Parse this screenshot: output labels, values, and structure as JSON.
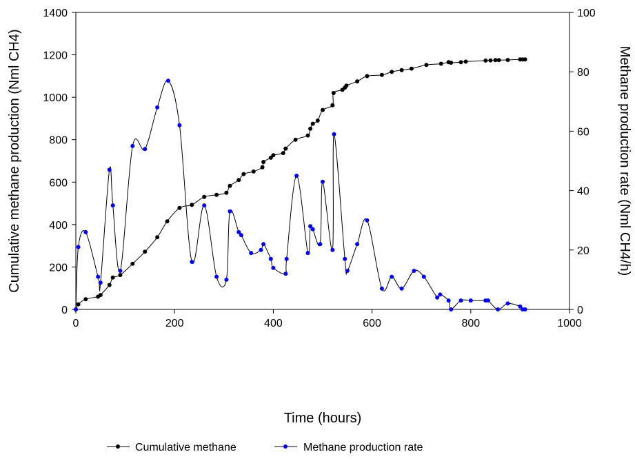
{
  "chart_data": {
    "type": "line",
    "xlabel": "Time (hours)",
    "ylabel": "Cumulative methane production (Nml CH4)",
    "y2label": "Methane production rate (Nml CH4/h)",
    "xlim": [
      0,
      1000
    ],
    "ylim": [
      0,
      1400
    ],
    "y2lim": [
      0,
      100
    ],
    "x_ticks": [
      "0",
      "200",
      "400",
      "600",
      "800",
      "1000"
    ],
    "y_ticks": [
      "0",
      "200",
      "400",
      "600",
      "800",
      "1000",
      "1200",
      "1400"
    ],
    "y2_ticks": [
      "0",
      "20",
      "40",
      "60",
      "80",
      "100"
    ],
    "grid": false,
    "legend_position": "bottom",
    "series": [
      {
        "name": "Cumulative methane",
        "axis": "left",
        "color": "#000000",
        "points": [
          [
            0,
            0
          ],
          [
            5,
            24
          ],
          [
            20,
            48
          ],
          [
            45,
            60
          ],
          [
            50,
            68
          ],
          [
            68,
            115
          ],
          [
            75,
            150
          ],
          [
            90,
            162
          ],
          [
            115,
            215
          ],
          [
            140,
            272
          ],
          [
            165,
            340
          ],
          [
            185,
            415
          ],
          [
            210,
            478
          ],
          [
            235,
            493
          ],
          [
            260,
            530
          ],
          [
            285,
            540
          ],
          [
            305,
            550
          ],
          [
            312,
            582
          ],
          [
            330,
            610
          ],
          [
            340,
            638
          ],
          [
            360,
            650
          ],
          [
            378,
            670
          ],
          [
            380,
            695
          ],
          [
            395,
            715
          ],
          [
            400,
            727
          ],
          [
            420,
            737
          ],
          [
            425,
            758
          ],
          [
            445,
            800
          ],
          [
            470,
            820
          ],
          [
            475,
            852
          ],
          [
            480,
            875
          ],
          [
            490,
            890
          ],
          [
            500,
            940
          ],
          [
            520,
            962
          ],
          [
            522,
            1020
          ],
          [
            540,
            1035
          ],
          [
            545,
            1045
          ],
          [
            548,
            1055
          ],
          [
            570,
            1075
          ],
          [
            590,
            1100
          ],
          [
            620,
            1105
          ],
          [
            640,
            1120
          ],
          [
            660,
            1128
          ],
          [
            680,
            1135
          ],
          [
            710,
            1152
          ],
          [
            740,
            1158
          ],
          [
            755,
            1165
          ],
          [
            760,
            1163
          ],
          [
            780,
            1165
          ],
          [
            790,
            1168
          ],
          [
            830,
            1173
          ],
          [
            840,
            1174
          ],
          [
            850,
            1175
          ],
          [
            857,
            1175
          ],
          [
            875,
            1176
          ],
          [
            900,
            1178
          ],
          [
            905,
            1178
          ],
          [
            910,
            1178
          ]
        ]
      },
      {
        "name": "Methane production rate",
        "axis": "right",
        "color": "#0000ff",
        "points": [
          [
            0,
            0
          ],
          [
            5,
            21
          ],
          [
            20,
            26
          ],
          [
            45,
            11
          ],
          [
            50,
            9
          ],
          [
            68,
            47
          ],
          [
            75,
            35
          ],
          [
            90,
            13
          ],
          [
            115,
            55
          ],
          [
            140,
            54
          ],
          [
            165,
            68
          ],
          [
            187,
            77
          ],
          [
            210,
            62
          ],
          [
            235,
            16
          ],
          [
            260,
            35
          ],
          [
            285,
            11
          ],
          [
            305,
            10
          ],
          [
            312,
            33
          ],
          [
            330,
            26
          ],
          [
            335,
            25
          ],
          [
            355,
            19
          ],
          [
            375,
            20
          ],
          [
            380,
            22
          ],
          [
            395,
            17
          ],
          [
            400,
            14
          ],
          [
            425,
            12
          ],
          [
            427,
            17
          ],
          [
            447,
            45
          ],
          [
            470,
            19
          ],
          [
            475,
            28
          ],
          [
            480,
            27
          ],
          [
            495,
            22
          ],
          [
            500,
            43
          ],
          [
            520,
            20
          ],
          [
            523,
            59
          ],
          [
            545,
            17
          ],
          [
            550,
            13
          ],
          [
            570,
            22
          ],
          [
            590,
            30
          ],
          [
            620,
            7
          ],
          [
            640,
            11
          ],
          [
            660,
            7
          ],
          [
            685,
            13
          ],
          [
            705,
            11
          ],
          [
            732,
            4
          ],
          [
            738,
            5
          ],
          [
            755,
            3
          ],
          [
            760,
            0
          ],
          [
            780,
            3
          ],
          [
            800,
            3
          ],
          [
            830,
            3
          ],
          [
            835,
            3
          ],
          [
            855,
            0
          ],
          [
            875,
            2
          ],
          [
            900,
            1
          ],
          [
            905,
            0
          ],
          [
            910,
            0
          ]
        ]
      }
    ]
  }
}
